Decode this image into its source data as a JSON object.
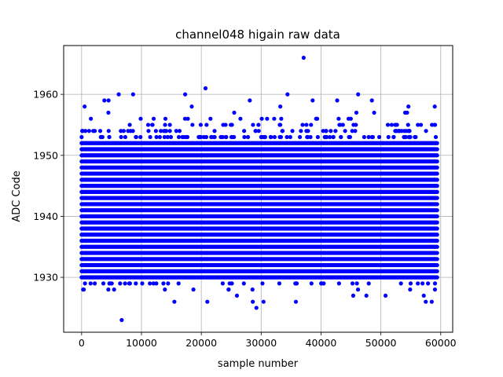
{
  "chart_data": {
    "type": "scatter",
    "title": "channel048 higain raw data",
    "xlabel": "sample number",
    "ylabel": "ADC Code",
    "xlim": [
      -3000,
      62000
    ],
    "ylim": [
      1921,
      1968
    ],
    "xticks": [
      0,
      10000,
      20000,
      30000,
      40000,
      50000,
      60000
    ],
    "yticks": [
      1930,
      1940,
      1950,
      1960
    ],
    "grid": true,
    "marker_color": "#0000ff",
    "n_samples": 59400,
    "dense_band": [
      1930,
      1952
    ],
    "series": [
      {
        "name": "",
        "outliers": [
          {
            "x": 500,
            "y": 1958
          },
          {
            "x": 3800,
            "y": 1959
          },
          {
            "x": 4500,
            "y": 1959
          },
          {
            "x": 6200,
            "y": 1960
          },
          {
            "x": 6700,
            "y": 1923
          },
          {
            "x": 8600,
            "y": 1960
          },
          {
            "x": 15500,
            "y": 1926
          },
          {
            "x": 17300,
            "y": 1960
          },
          {
            "x": 18400,
            "y": 1958
          },
          {
            "x": 20700,
            "y": 1961
          },
          {
            "x": 21000,
            "y": 1926
          },
          {
            "x": 28100,
            "y": 1959
          },
          {
            "x": 28600,
            "y": 1926
          },
          {
            "x": 29200,
            "y": 1925
          },
          {
            "x": 30400,
            "y": 1926
          },
          {
            "x": 33200,
            "y": 1958
          },
          {
            "x": 34400,
            "y": 1960
          },
          {
            "x": 35800,
            "y": 1926
          },
          {
            "x": 37100,
            "y": 1966
          },
          {
            "x": 38600,
            "y": 1959
          },
          {
            "x": 42700,
            "y": 1959
          },
          {
            "x": 46200,
            "y": 1960
          },
          {
            "x": 48500,
            "y": 1959
          },
          {
            "x": 54600,
            "y": 1958
          },
          {
            "x": 57500,
            "y": 1926
          },
          {
            "x": 58500,
            "y": 1926
          },
          {
            "x": 59000,
            "y": 1958
          }
        ]
      }
    ]
  }
}
